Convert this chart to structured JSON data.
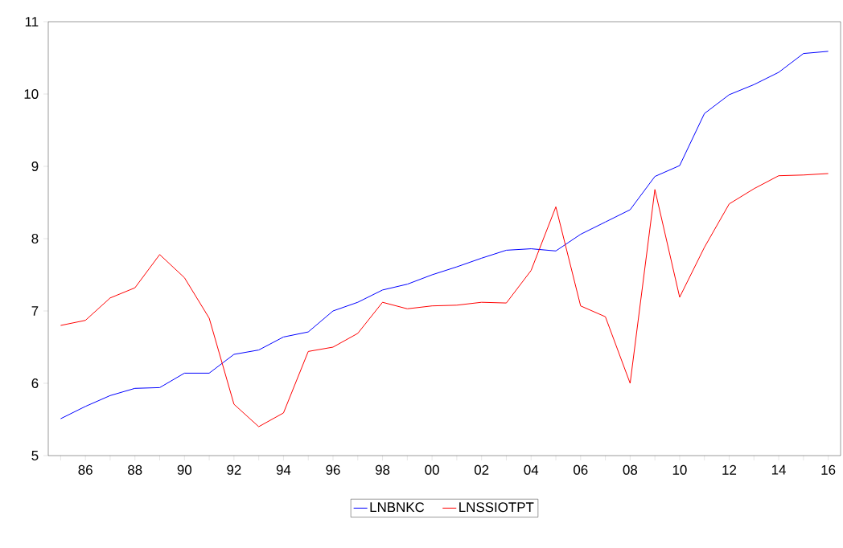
{
  "chart_data": {
    "type": "line",
    "categories": [
      null,
      "86",
      null,
      "88",
      null,
      "90",
      null,
      "92",
      null,
      "94",
      null,
      "96",
      null,
      "98",
      null,
      "00",
      null,
      "02",
      null,
      "04",
      null,
      "06",
      null,
      "08",
      null,
      "10",
      null,
      "12",
      null,
      "14",
      null,
      "16"
    ],
    "series": [
      {
        "name": "LNBNKC",
        "color": "#0000ff",
        "values": [
          5.51,
          5.68,
          5.83,
          5.93,
          5.94,
          6.14,
          6.14,
          6.4,
          6.46,
          6.64,
          6.71,
          7.0,
          7.12,
          7.29,
          7.37,
          7.5,
          7.61,
          7.73,
          7.84,
          7.86,
          7.83,
          8.06,
          8.23,
          8.4,
          8.86,
          9.01,
          9.73,
          9.99,
          10.13,
          10.3,
          10.56,
          10.59
        ]
      },
      {
        "name": "LNSSIOTPT",
        "color": "#ff0000",
        "values": [
          6.8,
          6.87,
          7.18,
          7.32,
          7.78,
          7.46,
          6.9,
          5.71,
          5.4,
          5.59,
          6.44,
          6.5,
          6.69,
          7.12,
          7.03,
          7.07,
          7.08,
          7.12,
          7.11,
          7.56,
          8.44,
          7.07,
          6.92,
          6.0,
          8.68,
          7.19,
          7.88,
          8.48,
          8.69,
          8.87,
          8.88,
          8.9
        ]
      }
    ],
    "ylim": [
      5,
      11
    ],
    "yticks": [
      5,
      6,
      7,
      8,
      9,
      10,
      11
    ],
    "legend": "bottom",
    "marker": "none",
    "line_style": "solid",
    "grid": false
  }
}
